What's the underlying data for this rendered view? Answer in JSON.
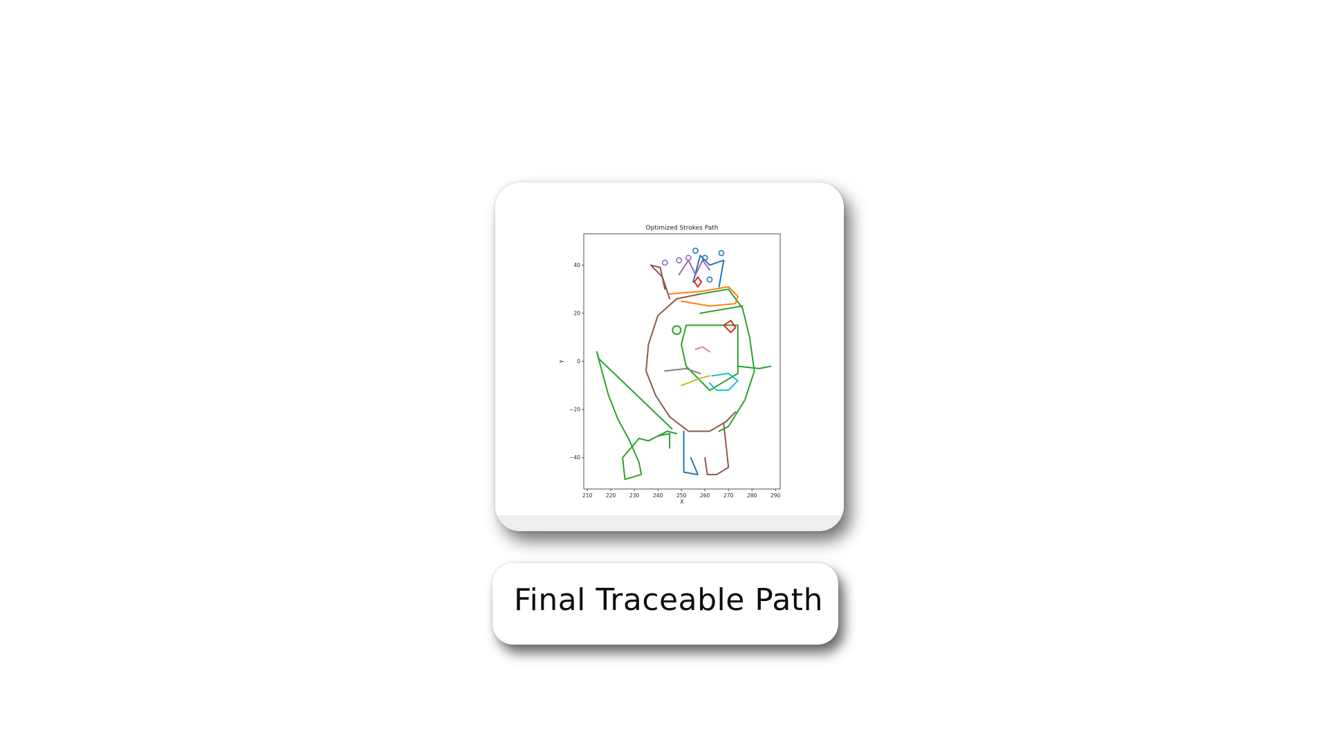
{
  "caption": "Final Traceable Path",
  "colors": {
    "blue": "#1f77b4",
    "orange": "#ff7f0e",
    "green": "#2ca02c",
    "red": "#d62728",
    "purple": "#9467bd",
    "brown": "#8c564b",
    "pink": "#e377c2",
    "gray": "#7f7f7f",
    "olive": "#bcbd22",
    "cyan": "#17becf"
  },
  "chart_data": {
    "type": "line",
    "title": "Optimized Strokes Path",
    "xlabel": "X",
    "ylabel": "Y",
    "xlim": [
      208.5,
      292
    ],
    "ylim": [
      -53,
      53
    ],
    "xticks": [
      210,
      220,
      230,
      240,
      250,
      260,
      270,
      280,
      290
    ],
    "yticks": [
      -40,
      -20,
      0,
      20,
      40
    ],
    "grid": false,
    "series": [
      {
        "color": "#8c564b",
        "points": [
          [
            258,
            28
          ],
          [
            248,
            26
          ],
          [
            240,
            19
          ],
          [
            236,
            7
          ],
          [
            235,
            -4
          ],
          [
            239,
            -14
          ],
          [
            245,
            -23
          ],
          [
            253,
            -29
          ],
          [
            262,
            -29
          ],
          [
            269,
            -25
          ],
          [
            273,
            -21
          ]
        ]
      },
      {
        "color": "#8c564b",
        "points": [
          [
            245,
            26
          ],
          [
            242,
            35
          ],
          [
            237,
            40
          ],
          [
            241,
            39
          ],
          [
            243,
            30
          ]
        ]
      },
      {
        "color": "#2ca02c",
        "points": [
          [
            258,
            28
          ],
          [
            270,
            30
          ],
          [
            276,
            22
          ],
          [
            279,
            10
          ],
          [
            281,
            -4
          ],
          [
            277,
            -16
          ],
          [
            270,
            -27
          ],
          [
            266,
            -29
          ]
        ]
      },
      {
        "color": "#2ca02c",
        "points": [
          [
            215,
            1
          ],
          [
            214,
            4
          ],
          [
            219,
            -14
          ],
          [
            223,
            -24
          ],
          [
            228,
            -33
          ],
          [
            232,
            -42
          ],
          [
            233,
            -47
          ],
          [
            226,
            -49
          ],
          [
            225,
            -40
          ],
          [
            232,
            -32
          ],
          [
            236,
            -33
          ],
          [
            244,
            -29
          ],
          [
            248,
            -30
          ]
        ]
      },
      {
        "color": "#2ca02c",
        "points": [
          [
            215,
            1
          ],
          [
            246,
            -28
          ]
        ]
      },
      {
        "color": "#2ca02c",
        "points": [
          [
            252,
            15
          ],
          [
            274,
            15
          ],
          [
            274,
            -5
          ],
          [
            262,
            -12
          ],
          [
            252,
            -2
          ],
          [
            250,
            7
          ],
          [
            252,
            15
          ]
        ]
      },
      {
        "color": "#2ca02c",
        "points": [
          [
            258,
            20
          ],
          [
            276,
            23
          ]
        ]
      },
      {
        "color": "#ff7f0e",
        "points": [
          [
            245,
            28
          ],
          [
            258,
            29
          ],
          [
            270,
            31
          ],
          [
            274,
            27
          ],
          [
            273,
            24
          ],
          [
            262,
            23
          ],
          [
            250,
            25
          ]
        ]
      },
      {
        "color": "#1f77b4",
        "points": [
          [
            255,
            33
          ],
          [
            258,
            44
          ],
          [
            262,
            40
          ],
          [
            268,
            42
          ],
          [
            266,
            31
          ]
        ]
      },
      {
        "color": "#9467bd",
        "points": [
          [
            249,
            36
          ],
          [
            253,
            42
          ],
          [
            256,
            36
          ],
          [
            259,
            42
          ],
          [
            262,
            38
          ]
        ]
      },
      {
        "color": "#d62728",
        "points": [
          [
            268,
            15
          ],
          [
            271,
            17
          ],
          [
            273,
            14
          ],
          [
            271,
            12
          ],
          [
            268,
            15
          ]
        ]
      },
      {
        "color": "#e377c2",
        "points": [
          [
            256,
            5
          ],
          [
            259,
            6
          ],
          [
            262,
            4
          ]
        ]
      },
      {
        "color": "#7f7f7f",
        "points": [
          [
            243,
            -4
          ],
          [
            252,
            -3
          ],
          [
            258,
            -5
          ]
        ]
      },
      {
        "color": "#bcbd22",
        "points": [
          [
            250,
            -10
          ],
          [
            258,
            -7
          ],
          [
            262,
            -6
          ]
        ]
      },
      {
        "color": "#17becf",
        "points": [
          [
            262,
            -9
          ],
          [
            265,
            -12
          ],
          [
            270,
            -12
          ],
          [
            274,
            -8
          ],
          [
            270,
            -5
          ],
          [
            263,
            -6
          ]
        ]
      },
      {
        "color": "#2ca02c",
        "points": [
          [
            274,
            -2
          ],
          [
            283,
            -3
          ],
          [
            288,
            -2
          ]
        ]
      },
      {
        "color": "#1f77b4",
        "points": [
          [
            251,
            -29
          ],
          [
            251,
            -46
          ],
          [
            257,
            -47
          ],
          [
            254,
            -40
          ]
        ]
      },
      {
        "color": "#8c564b",
        "points": [
          [
            268,
            -26
          ],
          [
            270,
            -44
          ],
          [
            265,
            -47
          ],
          [
            261,
            -47
          ],
          [
            260,
            -40
          ]
        ]
      },
      {
        "color": "#2ca02c",
        "points": [
          [
            240,
            -31
          ],
          [
            245,
            -30
          ],
          [
            245,
            -36
          ]
        ]
      }
    ]
  }
}
